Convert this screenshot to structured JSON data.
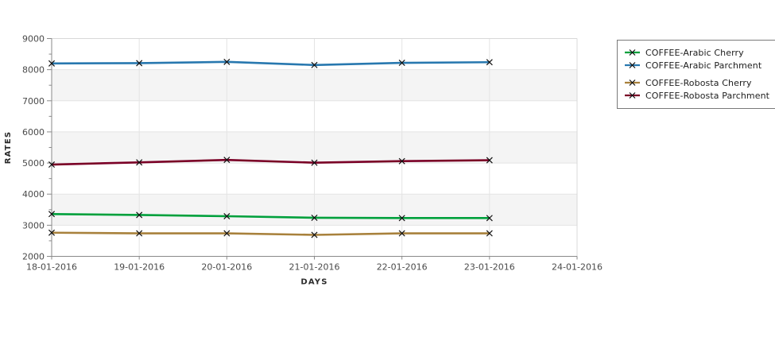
{
  "window": {
    "background": "#ffffff"
  },
  "chart_data": {
    "type": "line",
    "title": "",
    "xlabel": "DAYS",
    "ylabel": "RATES",
    "x_tick_labels": [
      "18-01-2016",
      "19-01-2016",
      "20-01-2016",
      "21-01-2016",
      "22-01-2016",
      "23-01-2016",
      "24-01-2016"
    ],
    "x_values": [
      "18-01-2016",
      "19-01-2016",
      "20-01-2016",
      "21-01-2016",
      "22-01-2016",
      "23-01-2016"
    ],
    "ylim": [
      2000,
      9000
    ],
    "y_tick_step": 1000,
    "y_minor_tick_step": 500,
    "grid": true,
    "band_fill": "#f4f4f4",
    "gridline_color": "#e4e4e4",
    "axis_color": "#8a8a8a",
    "tick_label_color": "#4a4a4a",
    "axis_title_color": "#2b2b2b",
    "marker": "x",
    "marker_color": "#111111",
    "legend_position": "outside-top-right",
    "series": [
      {
        "name": "COFFEE-Arabic Cherry",
        "color": "#00a03c",
        "values": [
          3360,
          3330,
          3290,
          3240,
          3230,
          3230
        ]
      },
      {
        "name": "COFFEE-Arabic Parchment",
        "color": "#2878af",
        "values": [
          8200,
          8210,
          8250,
          8150,
          8220,
          8240
        ]
      },
      {
        "name": "COFFEE-Robosta Cherry",
        "color": "#a8813c",
        "values": [
          2760,
          2740,
          2740,
          2690,
          2740,
          2740
        ]
      },
      {
        "name": "COFFEE-Robosta Parchment",
        "color": "#7a0026",
        "values": [
          4950,
          5020,
          5100,
          5010,
          5060,
          5090
        ]
      }
    ],
    "legend": {
      "border_color": "#7a7a7a",
      "group_gap_after_index": 1
    }
  }
}
